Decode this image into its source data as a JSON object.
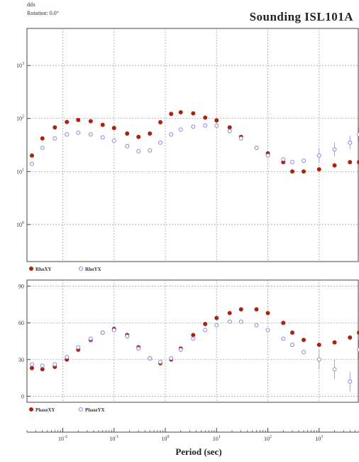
{
  "header": {
    "units_label": "ddx",
    "rotation_label": "Rotation: 0.0°",
    "title": "Sounding ISL101A"
  },
  "colors": {
    "xy_series": "#b0200f",
    "yx_series": "#8a86e0",
    "grid": "#9a9a9a",
    "axis": "#444444"
  },
  "chart_data": [
    {
      "name": "apparent-resistivity",
      "type": "scatter",
      "x_scale": "log",
      "y_scale": "log",
      "xlim": [
        0.002,
        6000
      ],
      "ylim": [
        0.2,
        5000
      ],
      "y_ticks": [
        {
          "value": 1,
          "label": "10^0"
        },
        {
          "value": 10,
          "label": "10^1"
        },
        {
          "value": 100,
          "label": "10^2"
        },
        {
          "value": 1000,
          "label": "10^3"
        }
      ],
      "grid": true,
      "legend": {
        "position": "bottom-left",
        "entries": [
          "RhoXY",
          "RhoYX"
        ]
      },
      "series": [
        {
          "name": "RhoXY",
          "color_key": "xy_series",
          "x": [
            0.0025,
            0.004,
            0.007,
            0.012,
            0.02,
            0.035,
            0.06,
            0.1,
            0.18,
            0.3,
            0.5,
            0.8,
            1.3,
            2,
            3.5,
            6,
            10,
            18,
            30,
            60,
            100,
            200,
            300,
            500,
            1000,
            2000,
            4000,
            6000
          ],
          "y": [
            20,
            42,
            68,
            86,
            94,
            89,
            76,
            66,
            52,
            45,
            52,
            85,
            122,
            131,
            125,
            104,
            92,
            68,
            45,
            28,
            22,
            15,
            10,
            10,
            11,
            13,
            15,
            15
          ]
        },
        {
          "name": "RhoYX",
          "color_key": "yx_series",
          "x": [
            0.0025,
            0.004,
            0.007,
            0.012,
            0.02,
            0.035,
            0.06,
            0.1,
            0.18,
            0.3,
            0.5,
            0.8,
            1.3,
            2,
            3.5,
            6,
            10,
            18,
            30,
            60,
            100,
            200,
            300,
            500,
            1000,
            2000,
            4000,
            6000
          ],
          "y": [
            14,
            28,
            42,
            50,
            54,
            50,
            44,
            38,
            30,
            24,
            25,
            35,
            50,
            62,
            70,
            74,
            73,
            58,
            42,
            28,
            20,
            17,
            15,
            16,
            20,
            26,
            35,
            50
          ],
          "error_bars": true
        }
      ]
    },
    {
      "name": "impedance-phase",
      "type": "scatter",
      "x_scale": "log",
      "xlim": [
        0.002,
        6000
      ],
      "ylim": [
        -5,
        95
      ],
      "y_ticks": [
        {
          "value": 0,
          "label": "0"
        },
        {
          "value": 30,
          "label": "30"
        },
        {
          "value": 60,
          "label": "60"
        },
        {
          "value": 90,
          "label": "90"
        }
      ],
      "grid": true,
      "legend": {
        "position": "bottom-left",
        "entries": [
          "PhaseXY",
          "PhaseYX"
        ]
      },
      "series": [
        {
          "name": "PhaseXY",
          "color_key": "xy_series",
          "x": [
            0.0025,
            0.004,
            0.007,
            0.012,
            0.02,
            0.035,
            0.06,
            0.1,
            0.18,
            0.3,
            0.5,
            0.8,
            1.3,
            2,
            3.5,
            6,
            10,
            18,
            30,
            60,
            100,
            200,
            300,
            500,
            1000,
            2000,
            4000,
            6000
          ],
          "y": [
            23,
            22,
            24,
            30,
            38,
            46,
            52,
            55,
            50,
            40,
            31,
            27,
            30,
            39,
            50,
            59,
            64,
            68,
            71,
            71,
            68,
            60,
            52,
            46,
            42,
            44,
            48,
            52
          ]
        },
        {
          "name": "PhaseYX",
          "color_key": "yx_series",
          "x": [
            0.0025,
            0.004,
            0.007,
            0.012,
            0.02,
            0.035,
            0.06,
            0.1,
            0.18,
            0.3,
            0.5,
            0.8,
            1.3,
            2,
            3.5,
            6,
            10,
            18,
            30,
            60,
            100,
            200,
            300,
            500,
            1000,
            2000,
            4000,
            6000
          ],
          "y": [
            26,
            25,
            26,
            32,
            40,
            47,
            52,
            54,
            49,
            39,
            31,
            28,
            31,
            38,
            47,
            54,
            58,
            61,
            61,
            58,
            54,
            47,
            42,
            36,
            30,
            22,
            12,
            38
          ],
          "error_bars": true
        }
      ]
    }
  ],
  "x_axis": {
    "label": "Period (sec)",
    "ticks": [
      {
        "value": 0.01,
        "label": "10^-2"
      },
      {
        "value": 0.1,
        "label": "10^-1"
      },
      {
        "value": 1,
        "label": "10^0"
      },
      {
        "value": 10,
        "label": "10^1"
      },
      {
        "value": 100,
        "label": "10^2"
      },
      {
        "value": 1000,
        "label": "10^3"
      }
    ]
  }
}
